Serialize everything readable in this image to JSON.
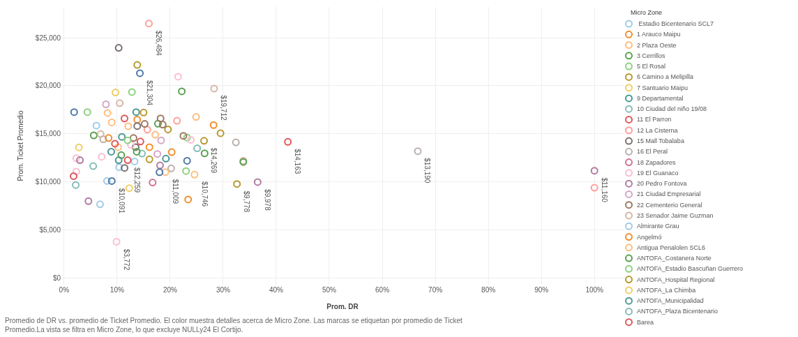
{
  "chart_data": {
    "type": "scatter",
    "xlabel": "Prom. DR",
    "ylabel": "Prom. Ticket Promedio",
    "legend_title": "Micro Zone",
    "legend": "right",
    "grid": true,
    "marker": "circle",
    "xlim": [
      -0.5,
      105.5
    ],
    "xticks": [
      {
        "value": 0,
        "label": "0%"
      },
      {
        "value": 10,
        "label": "10%"
      },
      {
        "value": 20,
        "label": "20%"
      },
      {
        "value": 30,
        "label": "30%"
      },
      {
        "value": 40,
        "label": "40%"
      },
      {
        "value": 50,
        "label": "50%"
      },
      {
        "value": 60,
        "label": "60%"
      },
      {
        "value": 70,
        "label": "70%"
      },
      {
        "value": 80,
        "label": "80%"
      },
      {
        "value": 90,
        "label": "90%"
      },
      {
        "value": 100,
        "label": "100%"
      }
    ],
    "ylim": [
      -700,
      28200
    ],
    "yticks": [
      {
        "value": 0,
        "label": "$0"
      },
      {
        "value": 5000,
        "label": "$5,000"
      },
      {
        "value": 10000,
        "label": "$10,000"
      },
      {
        "value": 15000,
        "label": "$15,000"
      },
      {
        "value": 20000,
        "label": "$20,000"
      },
      {
        "value": 25000,
        "label": "$25,000"
      }
    ],
    "series": [
      {
        "name": " Estadio Bicentenario SCL7",
        "color": "#a0cbe8",
        "x": [
          6.1,
          10.4,
          13.3
        ],
        "values": [
          15860,
          11520,
          12120
        ]
      },
      {
        "name": "1 Arauco Maipu",
        "color": "#f28e2b",
        "x": [
          13.8,
          28.2,
          16.1
        ],
        "values": [
          16480,
          15910,
          13610
        ]
      },
      {
        "name": "2 Plaza Oeste",
        "color": "#ffbe7d",
        "x": [
          8.2,
          24.9,
          9.0
        ],
        "values": [
          17170,
          16760,
          16190
        ]
      },
      {
        "name": "3 Cerrillos",
        "color": "#59a14f",
        "x": [
          22.2,
          17.7,
          5.6,
          26.5
        ],
        "values": [
          19420,
          16050,
          14840,
          12970
        ]
      },
      {
        "name": "5 El Rosal",
        "color": "#8cd17d",
        "x": [
          12.8,
          4.4,
          23.2
        ],
        "values": [
          19350,
          17260,
          14610
        ]
      },
      {
        "name": "6 Camino a Melipilla",
        "color": "#b6992d",
        "x": [
          13.8,
          15.0,
          19.6,
          29.5
        ],
        "values": [
          22170,
          17210,
          15460,
          15060
        ]
      },
      {
        "name": "7 Santuario Maipu",
        "color": "#f1ce63",
        "x": [
          9.7,
          2.8
        ],
        "values": [
          19300,
          13590
        ]
      },
      {
        "name": "9 Departamental",
        "color": "#499894",
        "x": [
          13.6,
          8.9,
          10.9
        ],
        "values": [
          17260,
          13140,
          14680
        ]
      },
      {
        "name": "10 Ciudad del niño 19/08",
        "color": "#86bcb6",
        "x": [
          14.7,
          25.1
        ],
        "values": [
          12950,
          13490
        ]
      },
      {
        "name": "11 El Parron",
        "color": "#e15759",
        "x": [
          11.4,
          42.2,
          12.0
        ],
        "values": [
          16600,
          14163,
          12259
        ],
        "value_labels": [
          null,
          "$14,163",
          "$12,259"
        ]
      },
      {
        "name": "12 La Cisterna",
        "color": "#ff9d9a",
        "x": [
          16.0,
          21.3,
          15.7,
          100.0
        ],
        "values": [
          26484,
          16360,
          15440,
          9390
        ],
        "value_labels": [
          "$26,484",
          null,
          null,
          null
        ]
      },
      {
        "name": "15 Mall Tobalaba",
        "color": "#79706e",
        "x": [
          10.3,
          13.8,
          11.4,
          13.5
        ],
        "values": [
          23950,
          15810,
          11450,
          13610
        ]
      },
      {
        "name": "16 El Peral",
        "color": "#bab0ac",
        "x": [
          32.4,
          20.2,
          66.7,
          7.4
        ],
        "values": [
          14110,
          11400,
          13190,
          14440
        ],
        "value_labels": [
          null,
          null,
          "$13,190",
          null
        ]
      },
      {
        "name": "18 Zapadores",
        "color": "#d37295",
        "x": [
          16.7
        ],
        "values": [
          9930
        ]
      },
      {
        "name": "19 El Guanaco",
        "color": "#fabfd2",
        "x": [
          21.5,
          23.9,
          2.3,
          7.1,
          2.3,
          9.9,
          12.6
        ],
        "values": [
          20940,
          14370,
          12470,
          12610,
          11070,
          3772,
          13850
        ],
        "value_labels": [
          null,
          null,
          null,
          null,
          null,
          "$3,772",
          null
        ]
      },
      {
        "name": "20 Pedro Fontova",
        "color": "#b07aa1",
        "x": [
          3.0,
          4.6,
          36.5,
          100.0,
          18.1
        ],
        "values": [
          12260,
          7990,
          9978,
          11160,
          11710
        ],
        "value_labels": [
          null,
          null,
          "$9,978",
          "$11,160",
          null
        ]
      },
      {
        "name": "21 Ciudad Empresarial",
        "color": "#d4a6c8",
        "x": [
          7.9,
          17.6,
          18.3
        ],
        "values": [
          18070,
          12900,
          14320
        ]
      },
      {
        "name": "22 Cementerio General",
        "color": "#9d7660",
        "x": [
          18.2,
          18.6,
          22.5,
          13.1,
          15.2
        ],
        "values": [
          16600,
          15960,
          14790,
          14560,
          16030
        ]
      },
      {
        "name": "23 Senador Jaime Guzman",
        "color": "#d7b5a6",
        "x": [
          28.3,
          10.5,
          33.8,
          6.9
        ],
        "values": [
          19712,
          18190,
          12190,
          14980
        ],
        "value_labels": [
          "$19,712",
          null,
          null,
          null
        ]
      },
      {
        "name": "Almirante Grau",
        "color": "#a0cbe8",
        "x": [
          8.1,
          6.8
        ],
        "values": [
          10100,
          7660
        ]
      },
      {
        "name": "Angelmó",
        "color": "#f28e2b",
        "x": [
          20.3,
          23.4,
          8.4
        ],
        "values": [
          13090,
          8160,
          14560
        ]
      },
      {
        "name": "Antigua Penalolen SCL6",
        "color": "#ffbe7d",
        "x": [
          12.1,
          17.2,
          10.2,
          19.1,
          24.6
        ],
        "values": [
          15790,
          14910,
          13610,
          11009,
          10746
        ],
        "value_labels": [
          null,
          null,
          null,
          "$11,009",
          "$10,746"
        ]
      },
      {
        "name": "ANTOFA_Costanera Norte",
        "color": "#59a14f",
        "x": [
          13.7,
          10.8,
          33.8
        ],
        "values": [
          13140,
          12780,
          12070
        ]
      },
      {
        "name": "ANTOFA_Estadio Bascuñan Guerrero",
        "color": "#8cd17d",
        "x": [
          23.0,
          12.0
        ],
        "values": [
          11120,
          14320
        ]
      },
      {
        "name": "ANTOFA_Hospital Regional",
        "color": "#b6992d",
        "x": [
          26.4,
          16.1,
          32.6
        ],
        "values": [
          14269,
          12350,
          9778
        ],
        "value_labels": [
          "$14,269",
          null,
          "$9,778"
        ]
      },
      {
        "name": "ANTOFA_La Chimba",
        "color": "#f1ce63",
        "x": [
          12.3
        ],
        "values": [
          9340
        ]
      },
      {
        "name": "ANTOFA_Municipalidad",
        "color": "#499894",
        "x": [
          10.3,
          19.2
        ],
        "values": [
          12260,
          12420
        ]
      },
      {
        "name": "ANTOFA_Plaza Bicentenario",
        "color": "#86bcb6",
        "x": [
          5.5,
          2.2
        ],
        "values": [
          11640,
          9670
        ]
      },
      {
        "name": "Barea",
        "color": "#e15759",
        "x": [
          9.6,
          14.4,
          1.8
        ],
        "values": [
          13970,
          14200,
          10600
        ]
      },
      {
        "color": "#4e79a7",
        "x": [
          14.3,
          1.9,
          23.2,
          9.0,
          18.0
        ],
        "values": [
          21304,
          17260,
          12190,
          10091,
          11000
        ],
        "value_labels": [
          "$21,304",
          null,
          null,
          "$10,091",
          null
        ]
      }
    ],
    "annotations": [
      "Promedio de DR vs. promedio de Ticket Promedio. El color muestra detalles acerca de Micro Zone. Las marcas se etiquetan por promedio de Ticket\nPromedio.La vista se filtra en Micro Zone, lo que excluye NULLy24 El Cortijo."
    ]
  }
}
